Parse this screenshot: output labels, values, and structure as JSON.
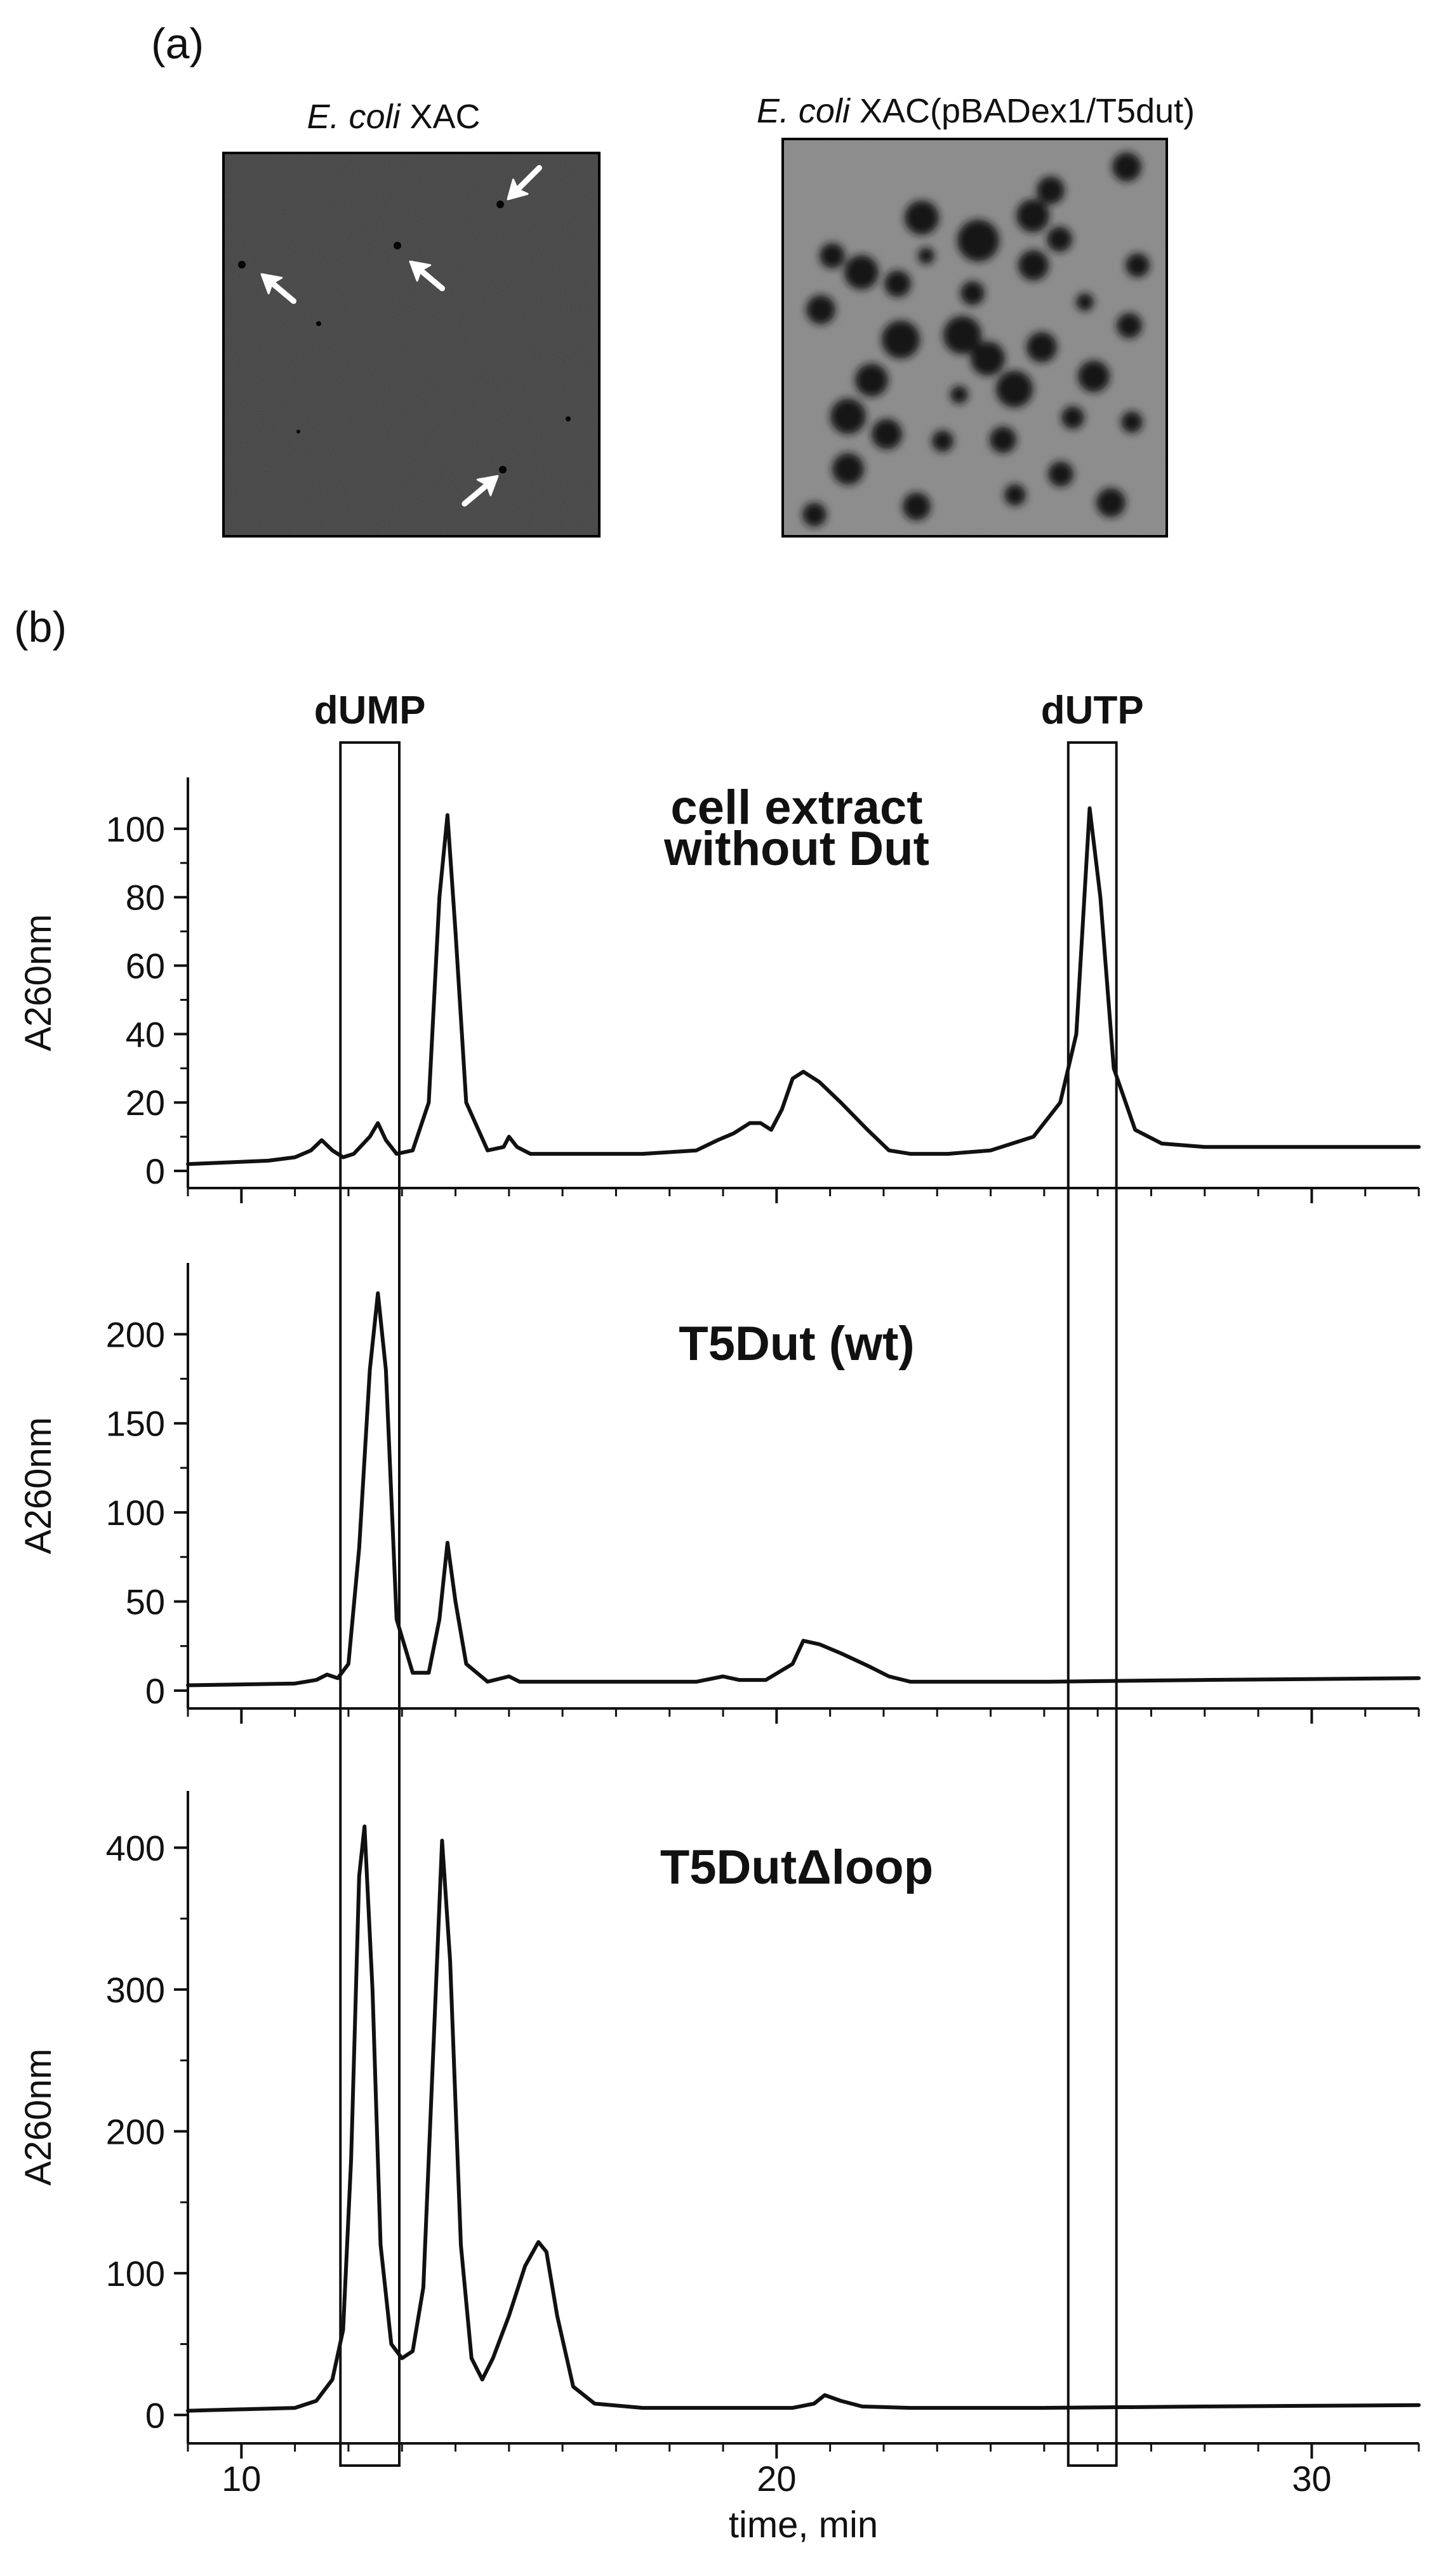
{
  "panel_a": {
    "label": "(a)",
    "images": [
      {
        "title_italic": "E. coli",
        "title_rest": " XAC",
        "description": "plate with few small colonies",
        "marker": "arrow-icon"
      },
      {
        "title_italic": "E. coli",
        "title_rest": " XAC(pBADex1/T5dut)",
        "description": "plate with many colonies"
      }
    ]
  },
  "panel_b_label": "(b)",
  "chart_data": [
    {
      "type": "line",
      "panel_title": [
        "cell extract",
        "without Dut"
      ],
      "ylabel": "A260nm",
      "xlim": [
        9,
        32
      ],
      "ylim": [
        -5,
        115
      ],
      "yticks": [
        0,
        20,
        40,
        60,
        80,
        100
      ],
      "x": [
        9.0,
        10.5,
        11.0,
        11.3,
        11.5,
        11.7,
        11.9,
        12.1,
        12.4,
        12.55,
        12.7,
        12.9,
        13.2,
        13.5,
        13.7,
        13.85,
        14.0,
        14.2,
        14.6,
        14.9,
        15.0,
        15.15,
        15.4,
        16.5,
        17.5,
        18.5,
        18.9,
        19.2,
        19.5,
        19.7,
        19.9,
        20.1,
        20.3,
        20.5,
        20.8,
        21.2,
        21.7,
        22.1,
        22.5,
        23.2,
        24.0,
        24.8,
        25.3,
        25.6,
        25.85,
        26.05,
        26.3,
        26.7,
        27.2,
        28.0,
        30.0,
        32.0
      ],
      "series": [
        {
          "values": [
            2,
            3,
            4,
            6,
            9,
            6,
            4,
            5,
            10,
            14,
            9,
            5,
            6,
            20,
            80,
            104,
            70,
            20,
            6,
            7,
            10,
            7,
            5,
            5,
            5,
            6,
            9,
            11,
            14,
            14,
            12,
            18,
            27,
            29,
            26,
            20,
            12,
            6,
            5,
            5,
            6,
            10,
            20,
            40,
            106,
            80,
            30,
            12,
            8,
            7,
            7,
            7
          ]
        }
      ],
      "annotations": [
        {
          "text": "dUMP",
          "x_range": [
            11.85,
            12.95
          ]
        },
        {
          "text": "dUTP",
          "x_range": [
            25.45,
            26.35
          ]
        }
      ]
    },
    {
      "type": "line",
      "panel_title": [
        "T5Dut (wt)"
      ],
      "ylabel": "A260nm",
      "xlim": [
        9,
        32
      ],
      "ylim": [
        -10,
        240
      ],
      "yticks": [
        0,
        50,
        100,
        150,
        200
      ],
      "x": [
        9.0,
        11.0,
        11.4,
        11.6,
        11.8,
        12.0,
        12.2,
        12.4,
        12.55,
        12.7,
        12.9,
        13.2,
        13.5,
        13.7,
        13.85,
        14.0,
        14.2,
        14.6,
        15.0,
        15.2,
        15.5,
        17.0,
        18.5,
        19.0,
        19.3,
        19.8,
        20.3,
        20.5,
        20.8,
        21.2,
        21.7,
        22.1,
        22.5,
        25.0,
        28.0,
        32.0
      ],
      "series": [
        {
          "values": [
            3,
            4,
            6,
            9,
            7,
            15,
            80,
            180,
            223,
            180,
            40,
            10,
            10,
            40,
            83,
            50,
            15,
            5,
            8,
            5,
            5,
            5,
            5,
            8,
            6,
            6,
            15,
            28,
            26,
            21,
            14,
            8,
            5,
            5,
            6,
            7
          ]
        }
      ],
      "annotations": []
    },
    {
      "type": "line",
      "panel_title": [
        "T5DutΔloop"
      ],
      "ylabel": "A260nm",
      "xlim": [
        9,
        32
      ],
      "ylim": [
        -20,
        440
      ],
      "yticks": [
        0,
        100,
        200,
        300,
        400
      ],
      "x": [
        9.0,
        11.0,
        11.4,
        11.7,
        11.9,
        12.05,
        12.2,
        12.3,
        12.45,
        12.6,
        12.8,
        13.0,
        13.2,
        13.4,
        13.6,
        13.75,
        13.9,
        14.1,
        14.3,
        14.5,
        14.7,
        15.0,
        15.3,
        15.55,
        15.7,
        15.9,
        16.2,
        16.6,
        17.5,
        19.0,
        19.5,
        20.3,
        20.7,
        20.9,
        21.2,
        21.6,
        22.5,
        25.0,
        28.0,
        32.0
      ],
      "series": [
        {
          "values": [
            3,
            5,
            10,
            25,
            60,
            180,
            380,
            415,
            300,
            120,
            50,
            40,
            45,
            90,
            270,
            405,
            320,
            120,
            40,
            25,
            40,
            70,
            105,
            122,
            115,
            70,
            20,
            8,
            5,
            5,
            5,
            5,
            8,
            14,
            10,
            6,
            5,
            5,
            6,
            7
          ]
        }
      ],
      "annotations": []
    }
  ],
  "x_axis": {
    "label": "time, min",
    "ticks": [
      10,
      20,
      30
    ],
    "minor_step": 1
  }
}
